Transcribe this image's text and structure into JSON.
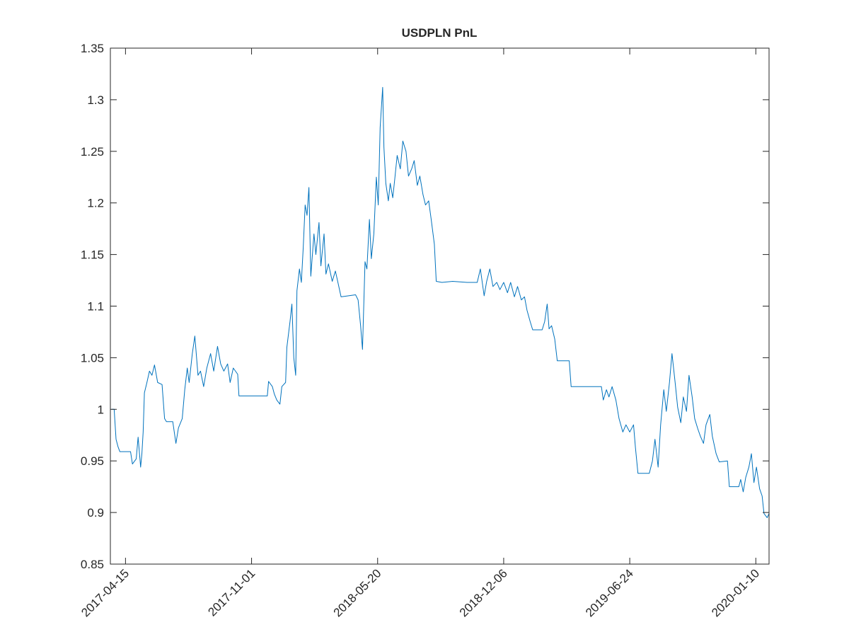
{
  "chart_data": {
    "type": "line",
    "title": "USDPLN PnL",
    "xlim": [
      "2017-03-22",
      "2020-01-31"
    ],
    "xticks": [
      "2017-04-15",
      "2017-11-01",
      "2018-05-20",
      "2018-12-06",
      "2019-06-24",
      "2020-01-10"
    ],
    "ylim": [
      0.85,
      1.35
    ],
    "yticks": [
      0.85,
      0.9,
      0.95,
      1,
      1.05,
      1.1,
      1.15,
      1.2,
      1.25,
      1.3,
      1.35
    ],
    "box": true,
    "x": [
      "2017-03-24",
      "2017-03-28",
      "2017-03-31",
      "2017-04-03",
      "2017-04-06",
      "2017-04-23",
      "2017-04-26",
      "2017-05-02",
      "2017-05-05",
      "2017-05-09",
      "2017-05-11",
      "2017-05-13",
      "2017-05-15",
      "2017-05-19",
      "2017-05-23",
      "2017-05-27",
      "2017-05-31",
      "2017-06-05",
      "2017-06-12",
      "2017-06-16",
      "2017-06-19",
      "2017-06-29",
      "2017-07-04",
      "2017-07-08",
      "2017-07-14",
      "2017-07-18",
      "2017-07-22",
      "2017-07-25",
      "2017-07-30",
      "2017-08-03",
      "2017-08-08",
      "2017-08-12",
      "2017-08-17",
      "2017-08-22",
      "2017-08-28",
      "2017-09-02",
      "2017-09-08",
      "2017-09-13",
      "2017-09-18",
      "2017-09-24",
      "2017-09-28",
      "2017-10-03",
      "2017-10-10",
      "2017-10-12",
      "2017-11-26",
      "2017-11-28",
      "2017-12-04",
      "2017-12-07",
      "2017-12-11",
      "2017-12-16",
      "2017-12-19",
      "2017-12-25",
      "2017-12-27",
      "2018-01-01",
      "2018-01-04",
      "2018-01-07",
      "2018-01-10",
      "2018-01-12",
      "2018-01-16",
      "2018-01-19",
      "2018-01-22",
      "2018-01-25",
      "2018-01-28",
      "2018-01-31",
      "2018-02-03",
      "2018-02-08",
      "2018-02-11",
      "2018-02-16",
      "2018-02-19",
      "2018-02-24",
      "2018-02-27",
      "2018-03-03",
      "2018-03-09",
      "2018-03-14",
      "2018-03-18",
      "2018-03-23",
      "2018-04-15",
      "2018-04-19",
      "2018-04-23",
      "2018-04-26",
      "2018-04-30",
      "2018-05-03",
      "2018-05-07",
      "2018-05-10",
      "2018-05-14",
      "2018-05-18",
      "2018-05-21",
      "2018-05-24",
      "2018-05-28",
      "2018-05-30",
      "2018-06-02",
      "2018-06-06",
      "2018-06-09",
      "2018-06-13",
      "2018-06-16",
      "2018-06-20",
      "2018-06-25",
      "2018-06-29",
      "2018-07-04",
      "2018-07-08",
      "2018-07-13",
      "2018-07-17",
      "2018-07-22",
      "2018-07-26",
      "2018-07-31",
      "2018-08-04",
      "2018-08-09",
      "2018-08-13",
      "2018-08-18",
      "2018-08-21",
      "2018-08-30",
      "2018-09-16",
      "2018-10-09",
      "2018-10-25",
      "2018-10-30",
      "2018-11-05",
      "2018-11-09",
      "2018-11-14",
      "2018-11-19",
      "2018-11-25",
      "2018-11-30",
      "2018-12-06",
      "2018-12-12",
      "2018-12-17",
      "2018-12-23",
      "2018-12-28",
      "2019-01-03",
      "2019-01-08",
      "2019-01-12",
      "2019-01-17",
      "2019-01-21",
      "2019-02-05",
      "2019-02-09",
      "2019-02-13",
      "2019-02-16",
      "2019-02-20",
      "2019-02-25",
      "2019-03-01",
      "2019-03-20",
      "2019-03-23",
      "2019-05-10",
      "2019-05-13",
      "2019-05-18",
      "2019-05-22",
      "2019-05-27",
      "2019-06-02",
      "2019-06-07",
      "2019-06-13",
      "2019-06-18",
      "2019-06-24",
      "2019-06-30",
      "2019-07-03",
      "2019-07-07",
      "2019-07-25",
      "2019-07-30",
      "2019-08-03",
      "2019-08-08",
      "2019-08-12",
      "2019-08-17",
      "2019-08-21",
      "2019-08-26",
      "2019-08-30",
      "2019-09-04",
      "2019-09-08",
      "2019-09-13",
      "2019-09-17",
      "2019-09-22",
      "2019-09-26",
      "2019-10-01",
      "2019-10-05",
      "2019-10-10",
      "2019-10-14",
      "2019-10-19",
      "2019-10-23",
      "2019-10-29",
      "2019-11-02",
      "2019-11-08",
      "2019-11-13",
      "2019-11-26",
      "2019-11-29",
      "2019-12-14",
      "2019-12-17",
      "2019-12-21",
      "2019-12-25",
      "2019-12-30",
      "2020-01-03",
      "2020-01-07",
      "2020-01-11",
      "2020-01-16",
      "2020-01-20",
      "2020-01-23",
      "2020-01-28",
      "2020-01-31"
    ],
    "series": [
      {
        "color": "#0072bd",
        "values": [
          1.0,
          1.0,
          0.971,
          0.964,
          0.959,
          0.959,
          0.947,
          0.952,
          0.973,
          0.944,
          0.957,
          0.978,
          1.016,
          1.026,
          1.037,
          1.033,
          1.043,
          1.026,
          1.024,
          0.991,
          0.988,
          0.988,
          0.967,
          0.982,
          0.991,
          1.019,
          1.04,
          1.026,
          1.054,
          1.071,
          1.033,
          1.037,
          1.022,
          1.04,
          1.054,
          1.037,
          1.061,
          1.044,
          1.037,
          1.044,
          1.026,
          1.04,
          1.034,
          1.013,
          1.013,
          1.027,
          1.022,
          1.015,
          1.009,
          1.005,
          1.022,
          1.026,
          1.06,
          1.085,
          1.102,
          1.05,
          1.033,
          1.115,
          1.136,
          1.123,
          1.157,
          1.198,
          1.188,
          1.215,
          1.129,
          1.17,
          1.15,
          1.181,
          1.139,
          1.17,
          1.131,
          1.141,
          1.124,
          1.134,
          1.123,
          1.109,
          1.111,
          1.106,
          1.081,
          1.058,
          1.143,
          1.136,
          1.184,
          1.146,
          1.17,
          1.225,
          1.198,
          1.273,
          1.312,
          1.254,
          1.219,
          1.202,
          1.219,
          1.205,
          1.222,
          1.246,
          1.233,
          1.26,
          1.25,
          1.226,
          1.233,
          1.241,
          1.217,
          1.226,
          1.208,
          1.198,
          1.202,
          1.184,
          1.16,
          1.124,
          1.123,
          1.124,
          1.123,
          1.123,
          1.136,
          1.11,
          1.124,
          1.136,
          1.119,
          1.123,
          1.116,
          1.123,
          1.113,
          1.123,
          1.109,
          1.119,
          1.106,
          1.109,
          1.096,
          1.085,
          1.077,
          1.077,
          1.085,
          1.102,
          1.078,
          1.081,
          1.068,
          1.047,
          1.047,
          1.022,
          1.022,
          1.009,
          1.019,
          1.012,
          1.022,
          1.009,
          0.991,
          0.978,
          0.985,
          0.978,
          0.985,
          0.963,
          0.938,
          0.938,
          0.95,
          0.971,
          0.944,
          0.985,
          1.019,
          0.998,
          1.026,
          1.054,
          1.026,
          1.002,
          0.987,
          1.012,
          0.998,
          1.033,
          1.012,
          0.991,
          0.981,
          0.974,
          0.967,
          0.985,
          0.995,
          0.974,
          0.957,
          0.949,
          0.95,
          0.925,
          0.925,
          0.932,
          0.92,
          0.934,
          0.944,
          0.957,
          0.929,
          0.944,
          0.923,
          0.916,
          0.899,
          0.895,
          0.899
        ]
      }
    ]
  }
}
